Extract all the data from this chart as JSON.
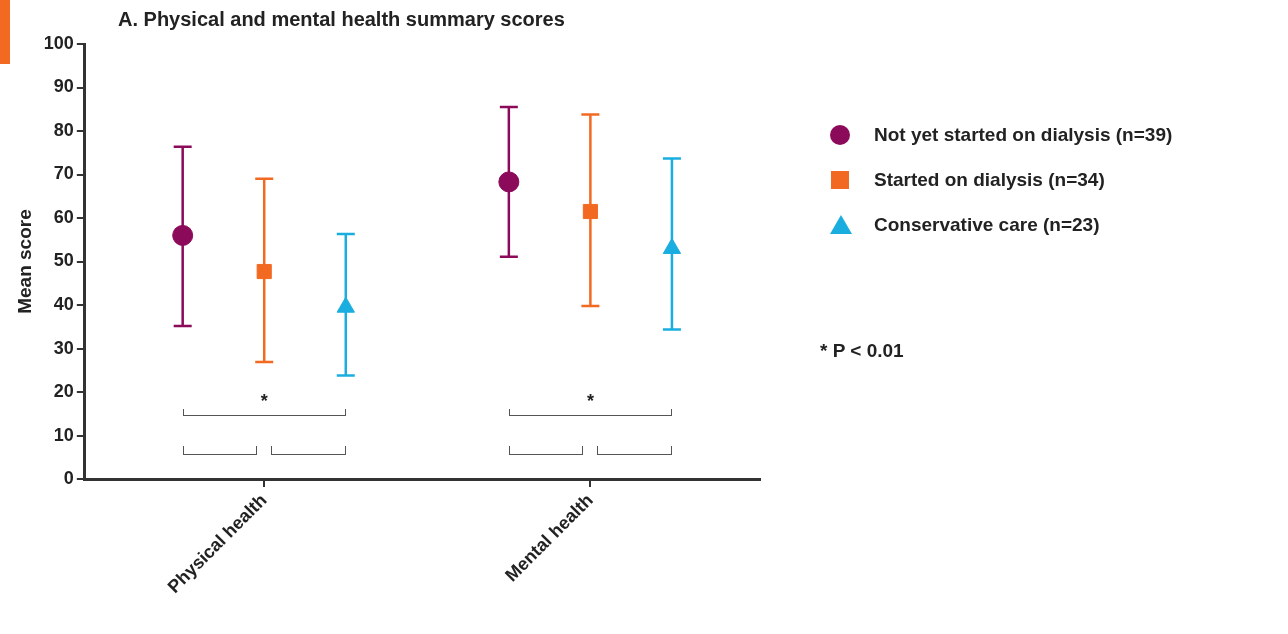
{
  "chart_data": {
    "type": "scatter",
    "title": "A. Physical and mental health summary scores",
    "ylabel": "Mean score",
    "categories": [
      "Physical health",
      "Mental health"
    ],
    "series": [
      {
        "name": "Not yet started on dialysis (n=39)",
        "color": "#8b0a5a",
        "marker": "circle",
        "values": [
          56,
          68.3
        ],
        "errors": [
          [
            35.2,
            76.4
          ],
          [
            51.1,
            85.5
          ]
        ]
      },
      {
        "name": "Started on dialysis (n=34)",
        "color": "#f26a22",
        "marker": "square",
        "values": [
          47.7,
          61.5
        ],
        "errors": [
          [
            26.9,
            69
          ],
          [
            39.8,
            83.8
          ]
        ]
      },
      {
        "name": "Conservative care (n=23)",
        "color": "#1aaee0",
        "marker": "triangle",
        "values": [
          39.5,
          53
        ],
        "errors": [
          [
            23.8,
            56.3
          ],
          [
            34.4,
            73.7
          ]
        ]
      }
    ],
    "ylim": [
      0,
      100
    ],
    "yticks": [
      0,
      10,
      20,
      30,
      40,
      50,
      60,
      70,
      80,
      90,
      100
    ],
    "grid": false,
    "legend": "right",
    "annotations": [
      "*",
      "*",
      "* P < 0.01"
    ]
  }
}
